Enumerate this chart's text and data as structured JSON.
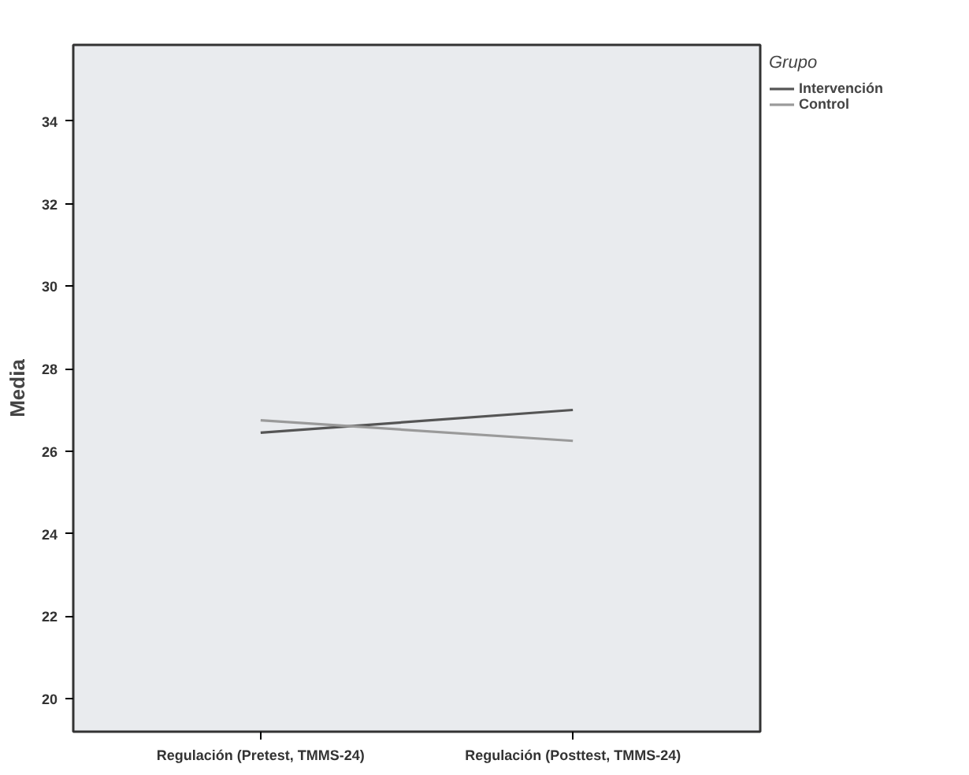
{
  "chart_data": {
    "type": "line",
    "ylabel": "Media",
    "legend_title": "Grupo",
    "legend": "top right",
    "grid": false,
    "marker": "none",
    "line_style": "solid",
    "categories": [
      "Regulación (Pretest, TMMS-24)",
      "Regulación (Posttest, TMMS-24)"
    ],
    "ylim": [
      19.2,
      35.85
    ],
    "yticks": [
      20,
      22,
      24,
      26,
      28,
      30,
      32,
      34
    ],
    "series": [
      {
        "name": "Intervención",
        "color": "#555555",
        "values": [
          26.45,
          27.0
        ]
      },
      {
        "name": "Control",
        "color": "#9a9a9a",
        "values": [
          26.75,
          26.25
        ]
      }
    ]
  }
}
